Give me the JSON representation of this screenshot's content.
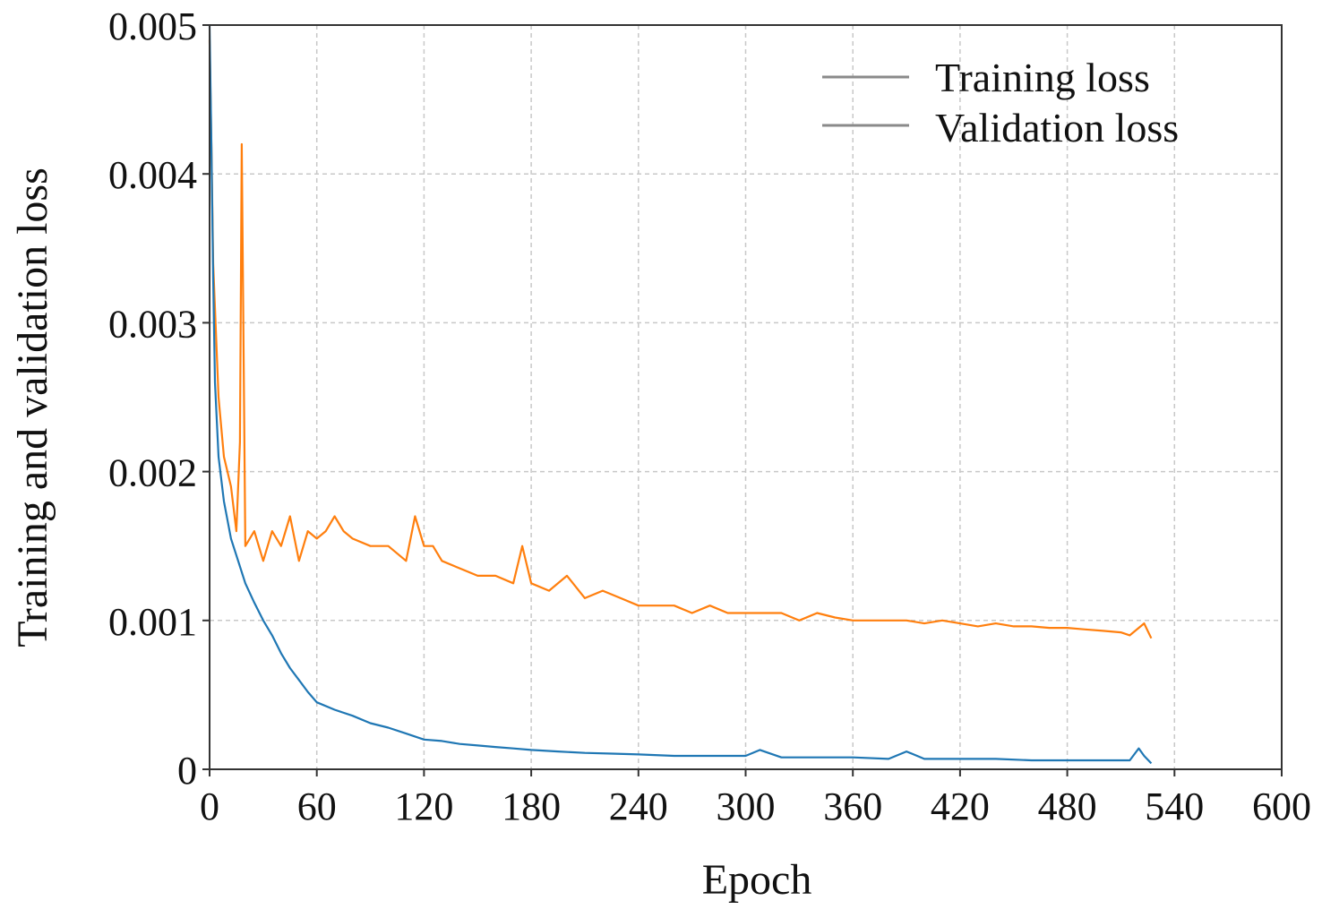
{
  "chart_data": {
    "type": "line",
    "title": "",
    "xlabel": "Epoch",
    "ylabel": "Training and validation loss",
    "xlim": [
      0,
      600
    ],
    "ylim": [
      0,
      0.005
    ],
    "xticks": [
      0,
      60,
      120,
      180,
      240,
      300,
      360,
      420,
      480,
      540,
      600
    ],
    "yticks": [
      0,
      0.001,
      0.002,
      0.003,
      0.004,
      0.005
    ],
    "xtick_labels": [
      "0",
      "60",
      "120",
      "180",
      "240",
      "300",
      "360",
      "420",
      "480",
      "540",
      "600"
    ],
    "ytick_labels": [
      "0",
      "0.001",
      "0.002",
      "0.003",
      "0.004",
      "0.005"
    ],
    "grid": true,
    "legend_position": "top-right",
    "series": [
      {
        "name": "Training loss",
        "color": "#1f77b4",
        "x": [
          0,
          1,
          2,
          3,
          5,
          8,
          12,
          16,
          20,
          25,
          30,
          35,
          40,
          45,
          50,
          55,
          60,
          70,
          80,
          90,
          100,
          110,
          120,
          130,
          140,
          150,
          160,
          170,
          180,
          195,
          210,
          225,
          240,
          260,
          280,
          300,
          308,
          320,
          340,
          360,
          380,
          390,
          400,
          420,
          440,
          460,
          480,
          500,
          515,
          520,
          523,
          527
        ],
        "y": [
          0.005,
          0.0042,
          0.0033,
          0.0026,
          0.0021,
          0.0018,
          0.00155,
          0.0014,
          0.00125,
          0.00112,
          0.001,
          0.0009,
          0.00078,
          0.00068,
          0.0006,
          0.00052,
          0.00045,
          0.0004,
          0.00036,
          0.00031,
          0.00028,
          0.00024,
          0.0002,
          0.00019,
          0.00017,
          0.00016,
          0.00015,
          0.00014,
          0.00013,
          0.00012,
          0.00011,
          0.000105,
          0.0001,
          9e-05,
          9e-05,
          9e-05,
          0.00013,
          8e-05,
          8e-05,
          8e-05,
          7e-05,
          0.00012,
          7e-05,
          7e-05,
          7e-05,
          6e-05,
          6e-05,
          6e-05,
          6e-05,
          0.00014,
          9e-05,
          4e-05
        ]
      },
      {
        "name": "Validation loss",
        "color": "#ff7f0e",
        "x": [
          0,
          1,
          2,
          3,
          5,
          8,
          12,
          15,
          17,
          18,
          20,
          25,
          30,
          35,
          40,
          45,
          50,
          55,
          60,
          65,
          70,
          75,
          80,
          90,
          100,
          110,
          115,
          120,
          125,
          130,
          140,
          150,
          160,
          170,
          175,
          180,
          190,
          200,
          210,
          220,
          230,
          240,
          250,
          260,
          270,
          280,
          290,
          300,
          310,
          320,
          330,
          340,
          350,
          360,
          370,
          380,
          390,
          400,
          410,
          420,
          430,
          440,
          450,
          460,
          470,
          480,
          490,
          500,
          510,
          515,
          520,
          523,
          527
        ],
        "y": [
          0.0049,
          0.0042,
          0.0034,
          0.0031,
          0.0025,
          0.0021,
          0.0019,
          0.0016,
          0.0022,
          0.0042,
          0.0015,
          0.0016,
          0.0014,
          0.0016,
          0.0015,
          0.0017,
          0.0014,
          0.0016,
          0.00155,
          0.0016,
          0.0017,
          0.0016,
          0.00155,
          0.0015,
          0.0015,
          0.0014,
          0.0017,
          0.0015,
          0.0015,
          0.0014,
          0.00135,
          0.0013,
          0.0013,
          0.00125,
          0.0015,
          0.00125,
          0.0012,
          0.0013,
          0.00115,
          0.0012,
          0.00115,
          0.0011,
          0.0011,
          0.0011,
          0.00105,
          0.0011,
          0.00105,
          0.00105,
          0.00105,
          0.00105,
          0.001,
          0.00105,
          0.00102,
          0.001,
          0.001,
          0.001,
          0.001,
          0.00098,
          0.001,
          0.00098,
          0.00096,
          0.00098,
          0.00096,
          0.00096,
          0.00095,
          0.00095,
          0.00094,
          0.00093,
          0.00092,
          0.0009,
          0.00095,
          0.00098,
          0.00088
        ]
      }
    ]
  }
}
